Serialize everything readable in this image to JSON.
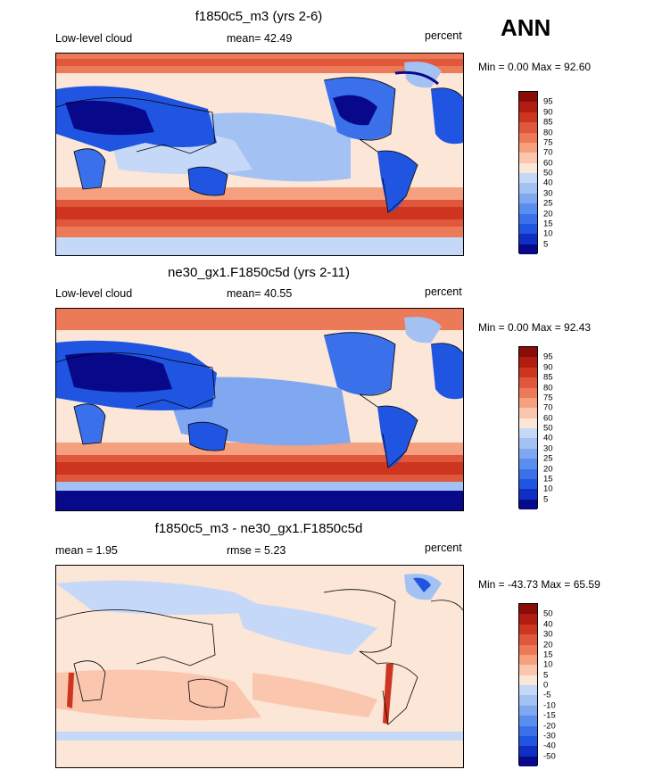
{
  "season": "ANN",
  "palette_main": [
    "#08088a",
    "#0f2fc4",
    "#1f55e0",
    "#3a70ea",
    "#5a8eee",
    "#7fa8f0",
    "#a3c1f3",
    "#c6d8f7",
    "#fbe6d8",
    "#fbc6ae",
    "#f5a07f",
    "#ec7a58",
    "#e0573b",
    "#cd3520",
    "#b01d10",
    "#8a0c06"
  ],
  "panels": [
    {
      "title": "f1850c5_m3 (yrs 2-6)",
      "left_label": "Low-level cloud",
      "center_label": "mean=  42.49",
      "right_label": "percent",
      "stats": "Min =   0.00 Max =  92.60",
      "levels": [
        "95",
        "90",
        "85",
        "80",
        "75",
        "70",
        "60",
        "50",
        "40",
        "30",
        "25",
        "20",
        "15",
        "10",
        "5"
      ]
    },
    {
      "title": "ne30_gx1.F1850c5d (yrs 2-11)",
      "left_label": "Low-level cloud",
      "center_label": "mean=  40.55",
      "right_label": "percent",
      "stats": "Min =   0.00 Max =  92.43",
      "levels": [
        "95",
        "90",
        "85",
        "80",
        "75",
        "70",
        "60",
        "50",
        "40",
        "30",
        "25",
        "20",
        "15",
        "10",
        "5"
      ]
    },
    {
      "title": "f1850c5_m3 - ne30_gx1.F1850c5d",
      "left_label": "mean =   1.95",
      "center_label": "rmse =   5.23",
      "right_label": "percent",
      "stats": "Min = -43.73 Max =  65.59",
      "levels": [
        "50",
        "40",
        "30",
        "20",
        "15",
        "10",
        "5",
        "0",
        "-5",
        "-10",
        "-15",
        "-20",
        "-30",
        "-40",
        "-50"
      ]
    }
  ]
}
